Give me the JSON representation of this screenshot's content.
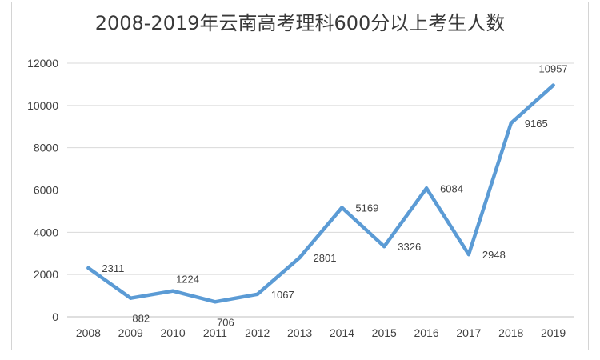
{
  "chart_data": {
    "type": "line",
    "title": "2008-2019年云南高考理科600分以上考生人数",
    "xlabel": "",
    "ylabel": "",
    "categories": [
      "2008",
      "2009",
      "2010",
      "2011",
      "2012",
      "2013",
      "2014",
      "2015",
      "2016",
      "2017",
      "2018",
      "2019"
    ],
    "series": [
      {
        "values": [
          2311,
          882,
          1224,
          706,
          1067,
          2801,
          5169,
          3326,
          6084,
          2948,
          9165,
          10957
        ],
        "data_labels": [
          "2311",
          "882",
          "1224",
          "706",
          "1067",
          "2801",
          "5169",
          "3326",
          "6084",
          "2948",
          "9165",
          "10957"
        ],
        "color": "#5b9bd5"
      }
    ],
    "ylim": [
      0,
      12000
    ],
    "yticks": [
      0,
      2000,
      4000,
      6000,
      8000,
      10000,
      12000
    ],
    "grid": true,
    "legend": "none"
  }
}
